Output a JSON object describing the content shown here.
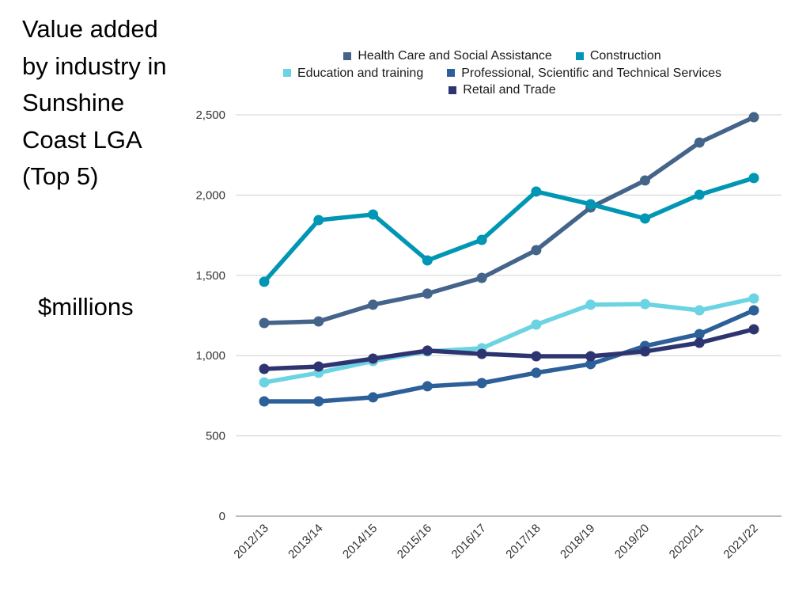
{
  "title": "Value added by industry in Sunshine Coast LGA (Top 5)",
  "units_label": "$millions",
  "chart_data": {
    "type": "line",
    "title": "Value added by industry in Sunshine Coast LGA (Top 5)",
    "xlabel": "",
    "ylabel": "$millions",
    "ylim": [
      0,
      2500
    ],
    "yticks": [
      0,
      500,
      1000,
      1500,
      2000,
      2500
    ],
    "ytick_labels": [
      "0",
      "500",
      "1,000",
      "1,500",
      "2,000",
      "2,500"
    ],
    "grid": true,
    "legend_position": "top",
    "categories": [
      "2012/13",
      "2013/14",
      "2014/15",
      "2015/16",
      "2016/17",
      "2017/18",
      "2018/19",
      "2019/20",
      "2020/21",
      "2021/22"
    ],
    "series": [
      {
        "name": "Health Care and Social Assistance",
        "color": "#44648a",
        "values": [
          1203,
          1213,
          1317,
          1386,
          1484,
          1657,
          1923,
          2091,
          2327,
          2485
        ]
      },
      {
        "name": "Construction",
        "color": "#0096b4",
        "values": [
          1460,
          1844,
          1879,
          1593,
          1721,
          2022,
          1943,
          1854,
          2002,
          2106
        ]
      },
      {
        "name": "Education and training",
        "color": "#6bd3e2",
        "values": [
          833,
          893,
          966,
          1026,
          1046,
          1193,
          1317,
          1321,
          1282,
          1356
        ]
      },
      {
        "name": "Professional, Scientific and Technical Services",
        "color": "#2d5f98",
        "values": [
          715,
          715,
          740,
          809,
          829,
          893,
          947,
          1060,
          1134,
          1282
        ]
      },
      {
        "name": "Retail and Trade",
        "color": "#2e3470",
        "values": [
          917,
          932,
          981,
          1031,
          1011,
          996,
          996,
          1026,
          1080,
          1164
        ]
      }
    ]
  }
}
